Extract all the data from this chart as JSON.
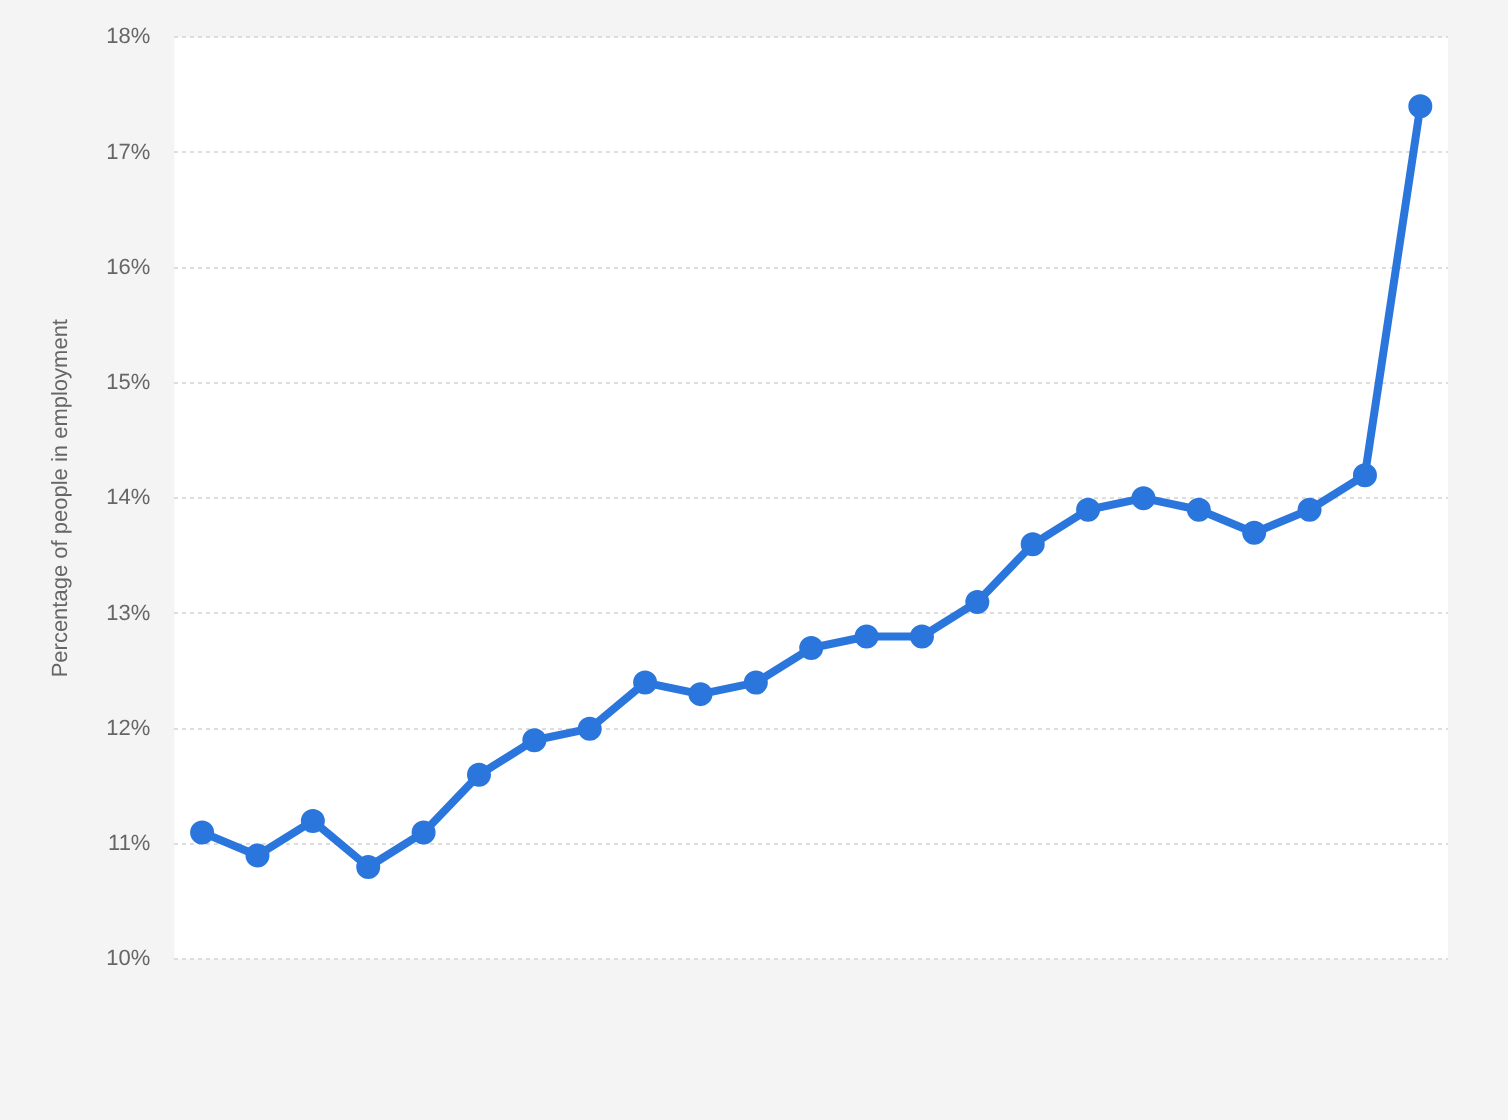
{
  "chart_data": {
    "type": "line",
    "ylabel": "Percentage of people in employment",
    "categories": [
      null,
      null,
      null,
      null,
      null,
      null,
      null,
      null,
      null,
      null,
      null,
      null,
      null,
      null,
      null,
      null,
      null,
      null,
      null,
      null,
      null,
      null,
      null
    ],
    "series": [
      {
        "color": "#2a76dd",
        "values": [
          11.1,
          10.9,
          11.2,
          10.8,
          11.1,
          11.6,
          11.9,
          12.0,
          12.4,
          12.3,
          12.4,
          12.7,
          12.8,
          12.8,
          13.1,
          13.6,
          13.9,
          14.0,
          13.9,
          13.7,
          13.9,
          14.2,
          17.4
        ]
      }
    ],
    "ylim": [
      10,
      18
    ],
    "yticks": [
      {
        "value": 10,
        "label": "10%"
      },
      {
        "value": 11,
        "label": "11%"
      },
      {
        "value": 12,
        "label": "12%"
      },
      {
        "value": 13,
        "label": "13%"
      },
      {
        "value": 14,
        "label": "14%"
      },
      {
        "value": 15,
        "label": "15%"
      },
      {
        "value": 16,
        "label": "16%"
      },
      {
        "value": 17,
        "label": "17%"
      },
      {
        "value": 18,
        "label": "18%"
      }
    ],
    "grid": "y",
    "legend": false,
    "marker": "circle",
    "line_style": "solid"
  }
}
